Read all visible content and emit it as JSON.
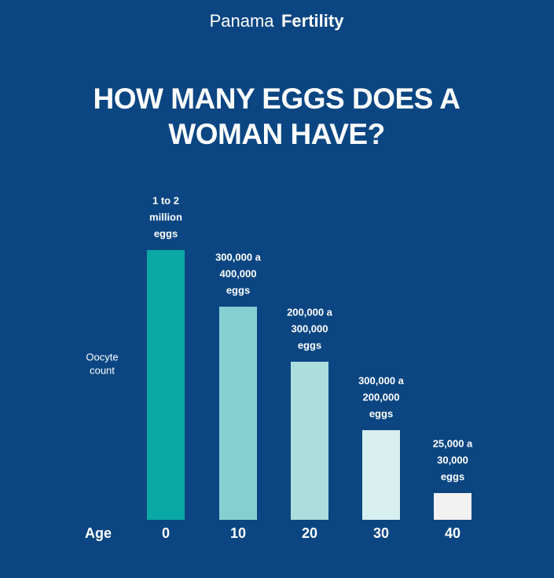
{
  "header": {
    "brand_light": "Panama",
    "brand_bold": "Fertility"
  },
  "title": [
    "HOW MANY EGGS DOES A",
    "WOMAN HAVE?"
  ],
  "y_label": [
    "Oocyte",
    "count"
  ],
  "x_label": "Age",
  "bars": [
    {
      "age": "0",
      "label": [
        "1 to 2",
        "million",
        "eggs"
      ]
    },
    {
      "age": "10",
      "label": [
        "300,000 a",
        "400,000",
        "eggs"
      ]
    },
    {
      "age": "20",
      "label": [
        "200,000 a",
        "300,000",
        "eggs"
      ]
    },
    {
      "age": "30",
      "label": [
        "300,000 a",
        "200,000",
        "eggs"
      ]
    },
    {
      "age": "40",
      "label": [
        "25,000 a",
        "30,000",
        "eggs"
      ]
    }
  ]
}
